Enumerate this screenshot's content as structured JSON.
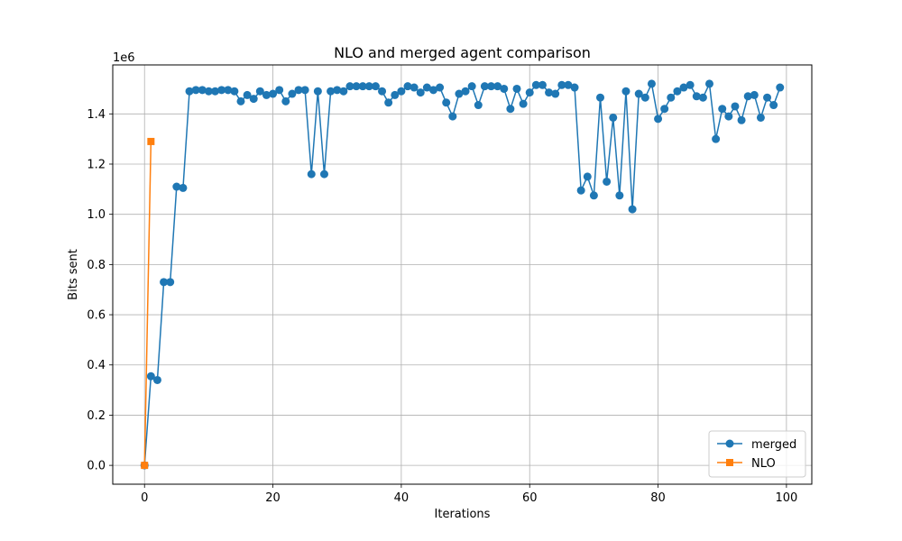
{
  "chart_data": {
    "type": "line",
    "title": "NLO and merged agent comparison",
    "xlabel": "Iterations",
    "ylabel": "Bits sent",
    "y_offset_text": "1e6",
    "xlim": [
      -4.95,
      103.95
    ],
    "ylim": [
      -75000,
      1595000
    ],
    "x_ticks": [
      0,
      20,
      40,
      60,
      80,
      100
    ],
    "y_ticks": [
      0,
      200000,
      400000,
      600000,
      800000,
      1000000,
      1200000,
      1400000
    ],
    "x_tick_labels": [
      "0",
      "20",
      "40",
      "60",
      "80",
      "100"
    ],
    "y_tick_labels": [
      "0.0",
      "0.2",
      "0.4",
      "0.6",
      "0.8",
      "1.0",
      "1.2",
      "1.4"
    ],
    "grid": true,
    "legend_position": "lower-right",
    "series": [
      {
        "name": "merged",
        "color": "#1f77b4",
        "marker": "circle",
        "x": [
          0,
          1,
          2,
          3,
          4,
          5,
          6,
          7,
          8,
          9,
          10,
          11,
          12,
          13,
          14,
          15,
          16,
          17,
          18,
          19,
          20,
          21,
          22,
          23,
          24,
          25,
          26,
          27,
          28,
          29,
          30,
          31,
          32,
          33,
          34,
          35,
          36,
          37,
          38,
          39,
          40,
          41,
          42,
          43,
          44,
          45,
          46,
          47,
          48,
          49,
          50,
          51,
          52,
          53,
          54,
          55,
          56,
          57,
          58,
          59,
          60,
          61,
          62,
          63,
          64,
          65,
          66,
          67,
          68,
          69,
          70,
          71,
          72,
          73,
          74,
          75,
          76,
          77,
          78,
          79,
          80,
          81,
          82,
          83,
          84,
          85,
          86,
          87,
          88,
          89,
          90,
          91,
          92,
          93,
          94,
          95,
          96,
          97,
          98,
          99
        ],
        "y": [
          0,
          355000,
          340000,
          730000,
          730000,
          1110000,
          1105000,
          1490000,
          1495000,
          1495000,
          1490000,
          1490000,
          1495000,
          1495000,
          1490000,
          1450000,
          1475000,
          1460000,
          1490000,
          1475000,
          1480000,
          1495000,
          1450000,
          1480000,
          1495000,
          1495000,
          1160000,
          1490000,
          1160000,
          1490000,
          1495000,
          1490000,
          1510000,
          1510000,
          1510000,
          1510000,
          1510000,
          1490000,
          1445000,
          1475000,
          1490000,
          1510000,
          1505000,
          1485000,
          1505000,
          1495000,
          1505000,
          1445000,
          1390000,
          1480000,
          1490000,
          1510000,
          1435000,
          1510000,
          1510000,
          1510000,
          1500000,
          1420000,
          1500000,
          1440000,
          1485000,
          1515000,
          1515000,
          1485000,
          1480000,
          1515000,
          1515000,
          1505000,
          1095000,
          1150000,
          1075000,
          1465000,
          1130000,
          1385000,
          1075000,
          1490000,
          1020000,
          1480000,
          1465000,
          1520000,
          1380000,
          1420000,
          1465000,
          1490000,
          1505000,
          1515000,
          1470000,
          1465000,
          1520000,
          1300000,
          1420000,
          1390000,
          1430000,
          1375000,
          1470000,
          1475000,
          1385000,
          1465000,
          1435000,
          1505000
        ]
      },
      {
        "name": "NLO",
        "color": "#ff7f0e",
        "marker": "square",
        "x": [
          0,
          1
        ],
        "y": [
          0,
          1290000
        ]
      }
    ]
  }
}
